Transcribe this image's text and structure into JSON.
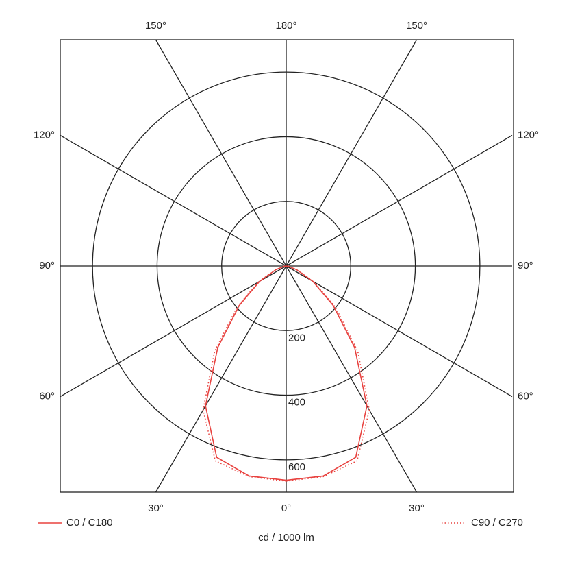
{
  "chart_data": {
    "type": "polar",
    "unit_label": "cd / 1000 lm",
    "x": [
      0,
      10,
      20,
      30,
      40,
      50,
      60,
      70,
      80,
      90
    ],
    "series": [
      {
        "name": "C0 / C180",
        "color": "#e8423f",
        "line_style": "solid",
        "values": [
          663,
          660,
          630,
          500,
          330,
          190,
          95,
          35,
          8,
          0
        ]
      },
      {
        "name": "C90 / C270",
        "color": "#e8423f",
        "line_style": "dotted",
        "values": [
          666,
          662,
          642,
          515,
          345,
          200,
          100,
          38,
          9,
          0
        ]
      }
    ],
    "rlim": [
      0,
      700
    ],
    "rticks": [
      200,
      400,
      600
    ],
    "angle_ticks": [
      {
        "value": 0,
        "label": "0°"
      },
      {
        "value": 30,
        "label": "30°"
      },
      {
        "value": 60,
        "label": "60°"
      },
      {
        "value": 90,
        "label": "90°"
      },
      {
        "value": 120,
        "label": "120°"
      },
      {
        "value": 150,
        "label": "150°"
      },
      {
        "value": 180,
        "label": "180°"
      }
    ]
  }
}
